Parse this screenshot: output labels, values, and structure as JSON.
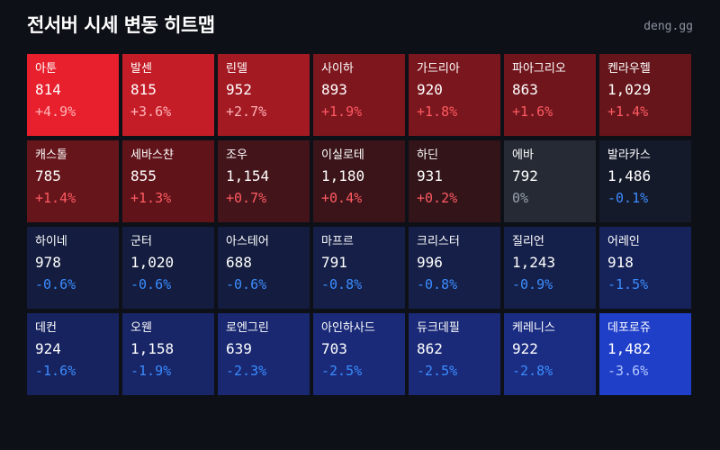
{
  "header": {
    "title": "전서버 시세 변동 히트맵",
    "brand": "deng.gg"
  },
  "colors": {
    "background": "#0e1017",
    "up_text": "#ff5a62",
    "up_text_strong": "#ffb3b8",
    "flat_text": "#9aa1ad",
    "down_text": "#3b8cff",
    "down_text_strong": "#b3c8ff"
  },
  "tiles": [
    {
      "name": "아툰",
      "price": "814",
      "change": "+4.9%",
      "color": "#e81f2c",
      "text_color": "#ffb3b8"
    },
    {
      "name": "발센",
      "price": "815",
      "change": "+3.6%",
      "color": "#c51d27",
      "text_color": "#ffb3b8"
    },
    {
      "name": "린델",
      "price": "952",
      "change": "+2.7%",
      "color": "#a31a23",
      "text_color": "#ffb3b8"
    },
    {
      "name": "사이하",
      "price": "893",
      "change": "+1.9%",
      "color": "#7e161e",
      "text_color": "#ff5a62"
    },
    {
      "name": "가드리아",
      "price": "920",
      "change": "+1.8%",
      "color": "#7a161d",
      "text_color": "#ff5a62"
    },
    {
      "name": "파아그리오",
      "price": "863",
      "change": "+1.6%",
      "color": "#70151c",
      "text_color": "#ff5a62"
    },
    {
      "name": "켄라우헬",
      "price": "1,029",
      "change": "+1.4%",
      "color": "#66151b",
      "text_color": "#ff5a62"
    },
    {
      "name": "캐스톨",
      "price": "785",
      "change": "+1.4%",
      "color": "#66151b",
      "text_color": "#ff5a62"
    },
    {
      "name": "세바스챤",
      "price": "855",
      "change": "+1.3%",
      "color": "#60141a",
      "text_color": "#ff5a62"
    },
    {
      "name": "조우",
      "price": "1,154",
      "change": "+0.7%",
      "color": "#43141a",
      "text_color": "#ff5a62"
    },
    {
      "name": "이실로테",
      "price": "1,180",
      "change": "+0.4%",
      "color": "#3a1419",
      "text_color": "#ff5a62"
    },
    {
      "name": "하딘",
      "price": "931",
      "change": "+0.2%",
      "color": "#321419",
      "text_color": "#ff5a62"
    },
    {
      "name": "에바",
      "price": "792",
      "change": "0%",
      "color": "#252a34",
      "text_color": "#9aa1ad"
    },
    {
      "name": "발라카스",
      "price": "1,486",
      "change": "-0.1%",
      "color": "#151a2a",
      "text_color": "#3b8cff"
    },
    {
      "name": "하이네",
      "price": "978",
      "change": "-0.6%",
      "color": "#141d3f",
      "text_color": "#3b8cff"
    },
    {
      "name": "군터",
      "price": "1,020",
      "change": "-0.6%",
      "color": "#141d3f",
      "text_color": "#3b8cff"
    },
    {
      "name": "아스테어",
      "price": "688",
      "change": "-0.6%",
      "color": "#141d3f",
      "text_color": "#3b8cff"
    },
    {
      "name": "마프르",
      "price": "791",
      "change": "-0.8%",
      "color": "#151f47",
      "text_color": "#3b8cff"
    },
    {
      "name": "크리스터",
      "price": "996",
      "change": "-0.8%",
      "color": "#151f47",
      "text_color": "#3b8cff"
    },
    {
      "name": "질리언",
      "price": "1,243",
      "change": "-0.9%",
      "color": "#15204a",
      "text_color": "#3b8cff"
    },
    {
      "name": "어레인",
      "price": "918",
      "change": "-1.5%",
      "color": "#16225a",
      "text_color": "#3b8cff"
    },
    {
      "name": "데컨",
      "price": "924",
      "change": "-1.6%",
      "color": "#17235e",
      "text_color": "#3b8cff"
    },
    {
      "name": "오웬",
      "price": "1,158",
      "change": "-1.9%",
      "color": "#182566",
      "text_color": "#3b8cff"
    },
    {
      "name": "로엔그린",
      "price": "639",
      "change": "-2.3%",
      "color": "#192871",
      "text_color": "#3b8cff"
    },
    {
      "name": "아인하사드",
      "price": "703",
      "change": "-2.5%",
      "color": "#1a2a78",
      "text_color": "#3b8cff"
    },
    {
      "name": "듀크데필",
      "price": "862",
      "change": "-2.5%",
      "color": "#1a2a78",
      "text_color": "#3b8cff"
    },
    {
      "name": "케레니스",
      "price": "922",
      "change": "-2.8%",
      "color": "#1b2d82",
      "text_color": "#3b8cff"
    },
    {
      "name": "데포로쥬",
      "price": "1,482",
      "change": "-3.6%",
      "color": "#1f3fc9",
      "text_color": "#b3c8ff"
    }
  ]
}
